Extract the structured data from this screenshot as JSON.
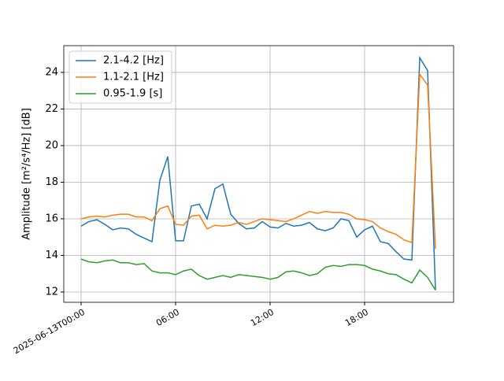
{
  "chart_data": {
    "type": "line",
    "ylabel": "Amplitude [m²/s⁴/Hz] [dB]",
    "x": [
      0,
      0.5,
      1,
      1.5,
      2,
      2.5,
      3,
      3.5,
      4,
      4.5,
      5,
      5.5,
      6,
      6.5,
      7,
      7.5,
      8,
      8.5,
      9,
      9.5,
      10,
      10.5,
      11,
      11.5,
      12,
      12.5,
      13,
      13.5,
      14,
      14.5,
      15,
      15.5,
      16,
      16.5,
      17,
      17.5,
      18,
      18.5,
      19,
      19.5,
      20,
      20.5,
      21,
      21.5,
      22,
      22.5
    ],
    "series": [
      {
        "name": "2.1-4.2 [Hz]",
        "color": "#1f77b4",
        "values": [
          15.6,
          15.85,
          15.95,
          15.7,
          15.4,
          15.5,
          15.45,
          15.15,
          14.95,
          14.75,
          18.1,
          19.4,
          14.8,
          14.8,
          16.7,
          16.8,
          16.0,
          17.65,
          17.9,
          16.25,
          15.75,
          15.45,
          15.5,
          15.85,
          15.55,
          15.5,
          15.75,
          15.6,
          15.65,
          15.8,
          15.45,
          15.35,
          15.5,
          16.0,
          15.9,
          15.0,
          15.4,
          15.6,
          14.75,
          14.65,
          14.2,
          13.8,
          13.75,
          24.8,
          24.1,
          12.1
        ]
      },
      {
        "name": "1.1-2.1 [Hz]",
        "color": "#ff7f0e",
        "values": [
          16.0,
          16.1,
          16.15,
          16.1,
          16.2,
          16.25,
          16.25,
          16.1,
          16.1,
          15.9,
          16.55,
          16.7,
          15.7,
          15.65,
          16.15,
          16.2,
          15.45,
          15.65,
          15.6,
          15.65,
          15.8,
          15.7,
          15.85,
          16.0,
          15.95,
          15.9,
          15.85,
          16.0,
          16.2,
          16.4,
          16.3,
          16.4,
          16.35,
          16.35,
          16.25,
          16.0,
          15.95,
          15.85,
          15.5,
          15.3,
          15.15,
          14.85,
          14.7,
          23.9,
          23.3,
          14.35
        ]
      },
      {
        "name": "0.95-1.9 [s]",
        "color": "#2ca02c",
        "values": [
          13.8,
          13.65,
          13.6,
          13.7,
          13.75,
          13.6,
          13.6,
          13.5,
          13.55,
          13.15,
          13.05,
          13.05,
          12.95,
          13.15,
          13.25,
          12.9,
          12.7,
          12.8,
          12.9,
          12.8,
          12.95,
          12.9,
          12.85,
          12.8,
          12.7,
          12.8,
          13.1,
          13.15,
          13.05,
          12.9,
          13.0,
          13.35,
          13.45,
          13.4,
          13.5,
          13.5,
          13.45,
          13.25,
          13.15,
          13.0,
          12.95,
          12.7,
          12.5,
          13.2,
          12.8,
          12.1
        ]
      }
    ],
    "xlim": [
      -1.1,
      23.65
    ],
    "xticks": [
      {
        "value": 0,
        "label": "2025-06-13T00:00"
      },
      {
        "value": 6,
        "label": "06:00"
      },
      {
        "value": 12,
        "label": "12:00"
      },
      {
        "value": 18,
        "label": "18:00"
      }
    ],
    "ylim": [
      11.44,
      25.46
    ],
    "yticks": [
      12,
      14,
      16,
      18,
      20,
      22,
      24
    ],
    "grid": true,
    "legend": "upper-left"
  }
}
